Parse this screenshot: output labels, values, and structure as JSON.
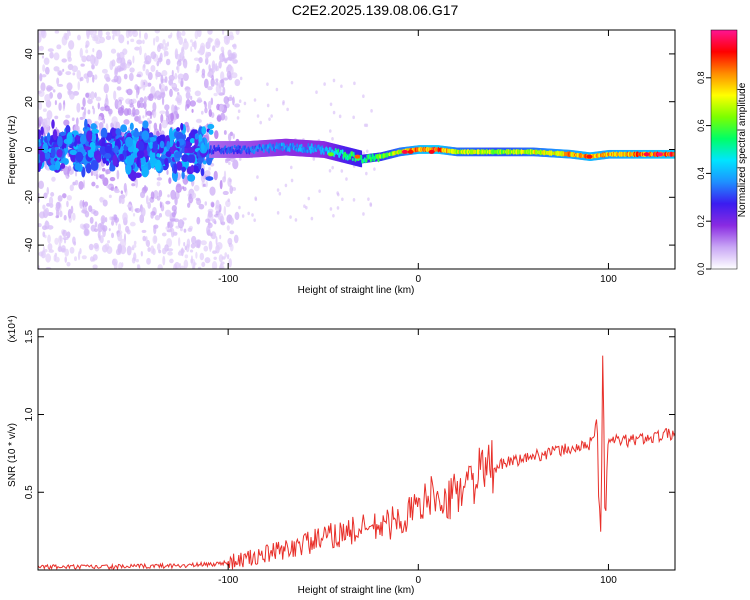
{
  "title": "C2E2.2025.139.08.06.G17",
  "colorbar": {
    "label": "Normalized spectral amplitude",
    "ticks": [
      "0.0",
      "0.2",
      "0.4",
      "0.6",
      "0.8"
    ],
    "stops": [
      "#ffffff",
      "#c9a7f5",
      "#8a2be2",
      "#3b1cf0",
      "#1e90ff",
      "#00e5ff",
      "#00ff66",
      "#7cff00",
      "#ffff00",
      "#ff8c00",
      "#ff0000",
      "#ff1493"
    ]
  },
  "chart_data": [
    {
      "type": "heatmap",
      "title": "C2E2.2025.139.08.06.G17",
      "xlabel": "Height of straight line (km)",
      "ylabel": "Frequency (Hz)",
      "xlim": [
        -200,
        135
      ],
      "ylim": [
        -50,
        50
      ],
      "x_ticks": [
        -100,
        0,
        100
      ],
      "x_tick_labels": [
        "-100",
        "0",
        "100"
      ],
      "y_ticks": [
        -40,
        -20,
        0,
        20,
        40
      ],
      "y_tick_labels": [
        "-40",
        "-20",
        "0",
        "20",
        "40"
      ],
      "z_range": [
        0,
        1
      ],
      "ridge": {
        "x": [
          -110,
          -90,
          -70,
          -50,
          -40,
          -30,
          -20,
          -10,
          0,
          10,
          20,
          40,
          60,
          80,
          90,
          100,
          120,
          135
        ],
        "freq": [
          0,
          0,
          1,
          0,
          -2,
          -4,
          -3,
          -1,
          0,
          0,
          -1,
          -1,
          -1,
          -2,
          -3,
          -2,
          -2,
          -2
        ],
        "amplitude": [
          0.3,
          0.35,
          0.4,
          0.4,
          0.55,
          0.6,
          0.65,
          0.75,
          0.9,
          0.95,
          0.75,
          0.7,
          0.75,
          0.85,
          0.9,
          0.85,
          0.9,
          0.95
        ]
      }
    },
    {
      "type": "line",
      "xlabel": "Height of straight line (km)",
      "ylabel": "SNR (10 * v/v)",
      "y_multiplier": "(x10⁴)",
      "xlim": [
        -200,
        135
      ],
      "ylim": [
        0,
        1.55
      ],
      "x_ticks": [
        -100,
        0,
        100
      ],
      "x_tick_labels": [
        "-100",
        "0",
        "100"
      ],
      "y_ticks": [
        0.5,
        1.0,
        1.5
      ],
      "y_tick_labels": [
        "0.5",
        "1.0",
        "1.5"
      ],
      "series": [
        {
          "color": "#e8302a",
          "x": [
            -200,
            -160,
            -120,
            -105,
            -90,
            -80,
            -70,
            -60,
            -50,
            -40,
            -30,
            -20,
            -10,
            0,
            5,
            8,
            10,
            13,
            20,
            30,
            40,
            50,
            60,
            70,
            80,
            90,
            94,
            96,
            97,
            98,
            100,
            110,
            120,
            135
          ],
          "y": [
            0.02,
            0.02,
            0.03,
            0.04,
            0.07,
            0.1,
            0.13,
            0.17,
            0.2,
            0.24,
            0.26,
            0.28,
            0.32,
            0.4,
            0.44,
            0.6,
            0.42,
            0.38,
            0.52,
            0.6,
            0.66,
            0.7,
            0.73,
            0.76,
            0.78,
            0.8,
            0.95,
            0.28,
            1.55,
            0.35,
            0.84,
            0.83,
            0.85,
            0.88
          ]
        }
      ]
    }
  ]
}
